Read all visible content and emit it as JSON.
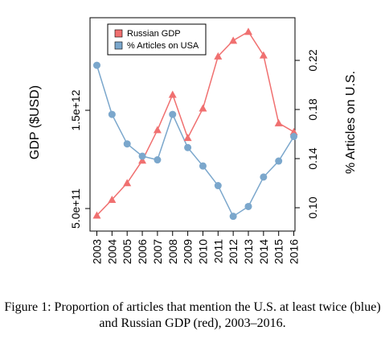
{
  "chart_data": {
    "type": "line",
    "x": [
      2003,
      2004,
      2005,
      2006,
      2007,
      2008,
      2009,
      2010,
      2011,
      2012,
      2013,
      2014,
      2015,
      2016
    ],
    "x_tick_labels": [
      "2003",
      "2004",
      "2005",
      "2006",
      "2007",
      "2008",
      "2009",
      "2010",
      "2011",
      "2012",
      "2013",
      "2014",
      "2015",
      "2016"
    ],
    "y_left": {
      "label": "GDP ($USD)",
      "ticks": [
        500000000000,
        1500000000000
      ],
      "tick_labels": [
        "5.0e+11",
        "1.5e+12"
      ]
    },
    "y_right": {
      "label": "% Articles on U.S.",
      "ticks": [
        0.1,
        0.14,
        0.18,
        0.22
      ],
      "tick_labels": [
        "0.10",
        "0.14",
        "0.18",
        "0.22"
      ]
    },
    "series": [
      {
        "name": "Russian GDP",
        "axis": "left",
        "color": "#f07070",
        "marker": "triangle",
        "values": [
          430000000000,
          590000000000,
          760000000000,
          990000000000,
          1300000000000,
          1660000000000,
          1220000000000,
          1520000000000,
          2050000000000,
          2210000000000,
          2300000000000,
          2060000000000,
          1370000000000,
          1280000000000
        ]
      },
      {
        "name": "% Articles on USA",
        "axis": "right",
        "color": "#7ba7cc",
        "marker": "circle",
        "values": [
          0.216,
          0.176,
          0.152,
          0.142,
          0.139,
          0.176,
          0.149,
          0.134,
          0.118,
          0.093,
          0.101,
          0.125,
          0.138,
          0.158
        ]
      }
    ],
    "legend": {
      "position": "top-left",
      "labels": [
        "Russian GDP",
        "% Articles on USA"
      ]
    },
    "grid": false,
    "caption": "Figure 1: Proportion of articles that mention the U.S. at least twice (blue) and Russian GDP (red), 2003–2016."
  }
}
